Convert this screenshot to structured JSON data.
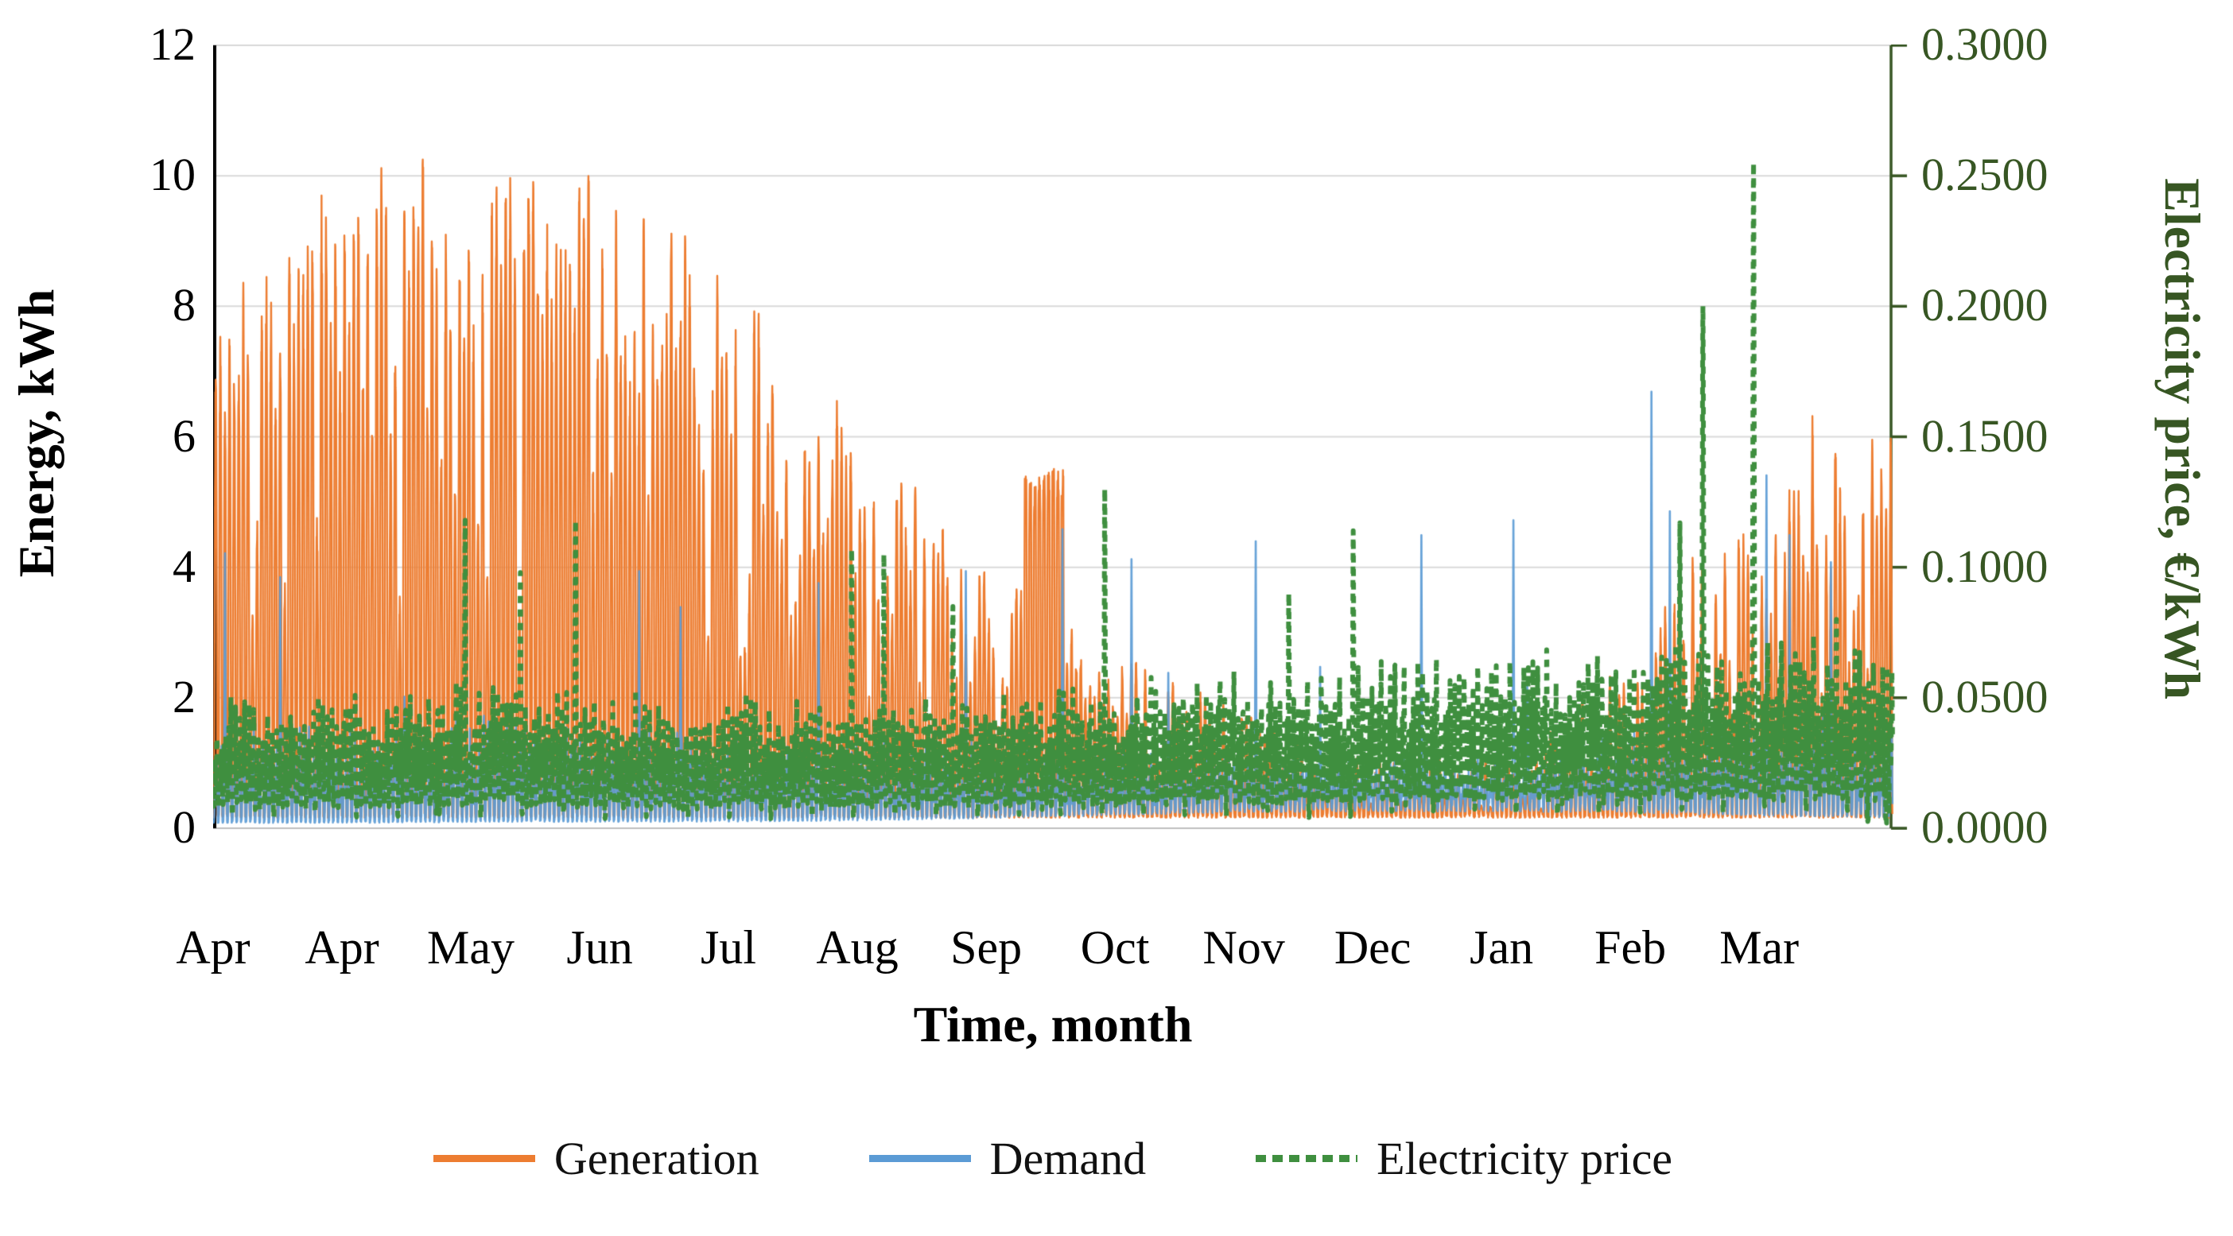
{
  "figure": {
    "type_note": "dual-axis hourly time-series chart, one year Apr-Mar"
  },
  "chart_data": {
    "type": "line",
    "title": "",
    "x_axis": {
      "label": "Time, month",
      "tick_labels": [
        "Apr",
        "Apr",
        "May",
        "Jun",
        "Jul",
        "Aug",
        "Sep",
        "Oct",
        "Nov",
        "Dec",
        "Jan",
        "Feb",
        "Mar"
      ],
      "span_days": 365,
      "tick_interval_days": 28
    },
    "y_left": {
      "label": "Energy, kWh",
      "min": 0,
      "max": 12,
      "tick_step": 2,
      "tick_labels": [
        "0",
        "2",
        "4",
        "6",
        "8",
        "10",
        "12"
      ],
      "tick_values": [
        0,
        2,
        4,
        6,
        8,
        10,
        12
      ],
      "color": "#000000"
    },
    "y_right": {
      "label": "Electricity price, €/kWh",
      "min": 0.0,
      "max": 0.3,
      "tick_step": 0.05,
      "tick_labels": [
        "0.0000",
        "0.0500",
        "0.1000",
        "0.1500",
        "0.2000",
        "0.2500",
        "0.3000"
      ],
      "tick_values": [
        0,
        0.05,
        0.1,
        0.15,
        0.2,
        0.25,
        0.3
      ],
      "color": "#375623"
    },
    "grid": true,
    "gridline_color": "#D9D9D9",
    "axis_line_left_color": "#000000",
    "axis_line_right_color": "#375623",
    "axis_line_bottom_color": "#BFBFBF",
    "legend_position": "bottom",
    "months_order": [
      "Apr",
      "May",
      "Jun",
      "Jul",
      "Aug",
      "Sep",
      "Oct",
      "Nov",
      "Dec",
      "Jan",
      "Feb",
      "Mar"
    ],
    "series": [
      {
        "name": "Generation",
        "unit": "kWh",
        "axis": "left",
        "color": "#ED7D31",
        "style": "solid",
        "night_floor_kwh": 0.2,
        "monthly_daily_peak_high_kwh": [
          7.8,
          10.5,
          10.3,
          10.2,
          8.0,
          5.6,
          3.6,
          2.4,
          1.2,
          1.1,
          2.4,
          5.6,
          7.3
        ],
        "monthly_daily_peak_low_kwh": [
          6.0,
          8.2,
          7.4,
          6.0,
          4.6,
          2.8,
          1.7,
          0.9,
          0.4,
          0.35,
          0.8,
          2.2,
          3.4
        ],
        "cloudy_day_fraction": 0.2,
        "plateau": {
          "start_day": 176,
          "end_day": 184,
          "value_kwh": 5.2
        }
      },
      {
        "name": "Demand",
        "unit": "kWh",
        "axis": "left",
        "color": "#5B9BD5",
        "style": "solid",
        "monthly_day_max_kwh": [
          1.35,
          1.3,
          1.5,
          1.3,
          1.2,
          1.1,
          1.0,
          1.0,
          1.05,
          1.05,
          1.2,
          1.4,
          1.45
        ],
        "monthly_night_min_kwh": [
          0.1,
          0.1,
          0.12,
          0.12,
          0.13,
          0.16,
          0.22,
          0.28,
          0.32,
          0.32,
          0.3,
          0.24,
          0.2
        ],
        "spikes": [
          {
            "day": 2,
            "kwh": 4.6
          },
          {
            "day": 14,
            "kwh": 4.2
          },
          {
            "day": 41,
            "kwh": 2.2
          },
          {
            "day": 92,
            "kwh": 4.3
          },
          {
            "day": 101,
            "kwh": 3.7
          },
          {
            "day": 131,
            "kwh": 4.1
          },
          {
            "day": 163,
            "kwh": 4.3
          },
          {
            "day": 184,
            "kwh": 5.0
          },
          {
            "day": 199,
            "kwh": 4.5
          },
          {
            "day": 207,
            "kwh": 2.6
          },
          {
            "day": 226,
            "kwh": 4.8
          },
          {
            "day": 240,
            "kwh": 2.7
          },
          {
            "day": 262,
            "kwh": 4.9
          },
          {
            "day": 282,
            "kwh": 5.15
          },
          {
            "day": 285,
            "kwh": 2.5
          },
          {
            "day": 312,
            "kwh": 7.3
          },
          {
            "day": 316,
            "kwh": 5.3
          },
          {
            "day": 337,
            "kwh": 5.9
          },
          {
            "day": 342,
            "kwh": 4.9
          },
          {
            "day": 351,
            "kwh": 4.45
          }
        ]
      },
      {
        "name": "Electricity price",
        "unit": "€/kWh",
        "axis": "right",
        "color": "#3F8F3F",
        "style": "dashed",
        "monthly_mean_eur_kwh": [
          0.028,
          0.031,
          0.033,
          0.031,
          0.029,
          0.03,
          0.032,
          0.034,
          0.036,
          0.038,
          0.04,
          0.042,
          0.042
        ],
        "daily_peak_amplitude_eur_kwh": 0.014,
        "spikes": [
          {
            "day": 54,
            "eur_kwh": 0.118
          },
          {
            "day": 66,
            "eur_kwh": 0.098
          },
          {
            "day": 78,
            "eur_kwh": 0.118
          },
          {
            "day": 138,
            "eur_kwh": 0.107
          },
          {
            "day": 145,
            "eur_kwh": 0.105
          },
          {
            "day": 160,
            "eur_kwh": 0.085
          },
          {
            "day": 193,
            "eur_kwh": 0.13
          },
          {
            "day": 233,
            "eur_kwh": 0.09
          },
          {
            "day": 247,
            "eur_kwh": 0.114
          },
          {
            "day": 318,
            "eur_kwh": 0.117
          },
          {
            "day": 323,
            "eur_kwh": 0.2
          },
          {
            "day": 334,
            "eur_kwh": 0.255
          },
          {
            "day": 352,
            "eur_kwh": 0.08
          }
        ],
        "dips": [
          {
            "day": 48,
            "eur_kwh": 0.005
          },
          {
            "day": 359,
            "eur_kwh": 0.002
          },
          {
            "day": 363,
            "eur_kwh": 0.001
          }
        ]
      }
    ]
  }
}
